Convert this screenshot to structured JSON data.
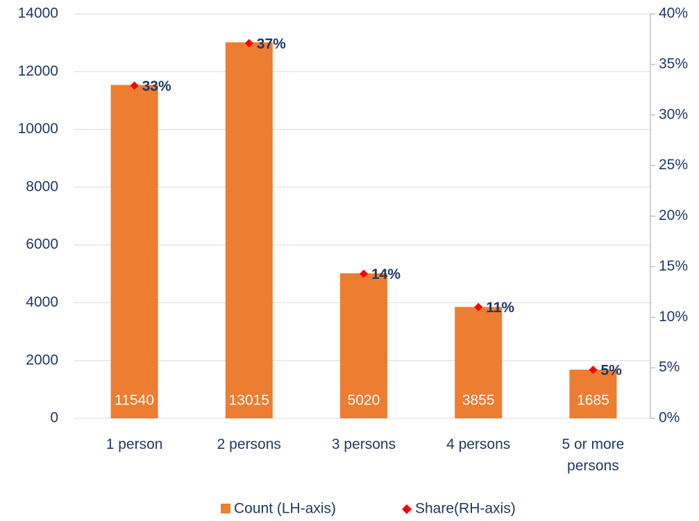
{
  "chart_data": {
    "type": "bar",
    "categories": [
      "1 person",
      "2 persons",
      "3 persons",
      "4 persons",
      "5 or more persons"
    ],
    "series": [
      {
        "name": "Count (LH-axis)",
        "color": "#ed7d31",
        "values": [
          11540,
          13015,
          5020,
          3855,
          1685
        ]
      },
      {
        "name": "Share(RH-axis)",
        "color": "#ff0000",
        "axis": "y2",
        "values": [
          32.9,
          37.1,
          14.3,
          11.0,
          4.8
        ],
        "value_labels": [
          "33%",
          "37%",
          "14%",
          "11%",
          "5%"
        ]
      }
    ],
    "ylim": [
      0,
      14000
    ],
    "yticks": [
      0,
      2000,
      4000,
      6000,
      8000,
      10000,
      12000,
      14000
    ],
    "y2lim": [
      0,
      40
    ],
    "y2ticks": [
      {
        "value": 0,
        "label": "0%"
      },
      {
        "value": 5,
        "label": "5%"
      },
      {
        "value": 10,
        "label": "10%"
      },
      {
        "value": 15,
        "label": "15%"
      },
      {
        "value": 20,
        "label": "20%"
      },
      {
        "value": 25,
        "label": "25%"
      },
      {
        "value": 30,
        "label": "30%"
      },
      {
        "value": 35,
        "label": "35%"
      },
      {
        "value": 40,
        "label": "40%"
      }
    ],
    "grid": true,
    "legend": "bottom"
  }
}
